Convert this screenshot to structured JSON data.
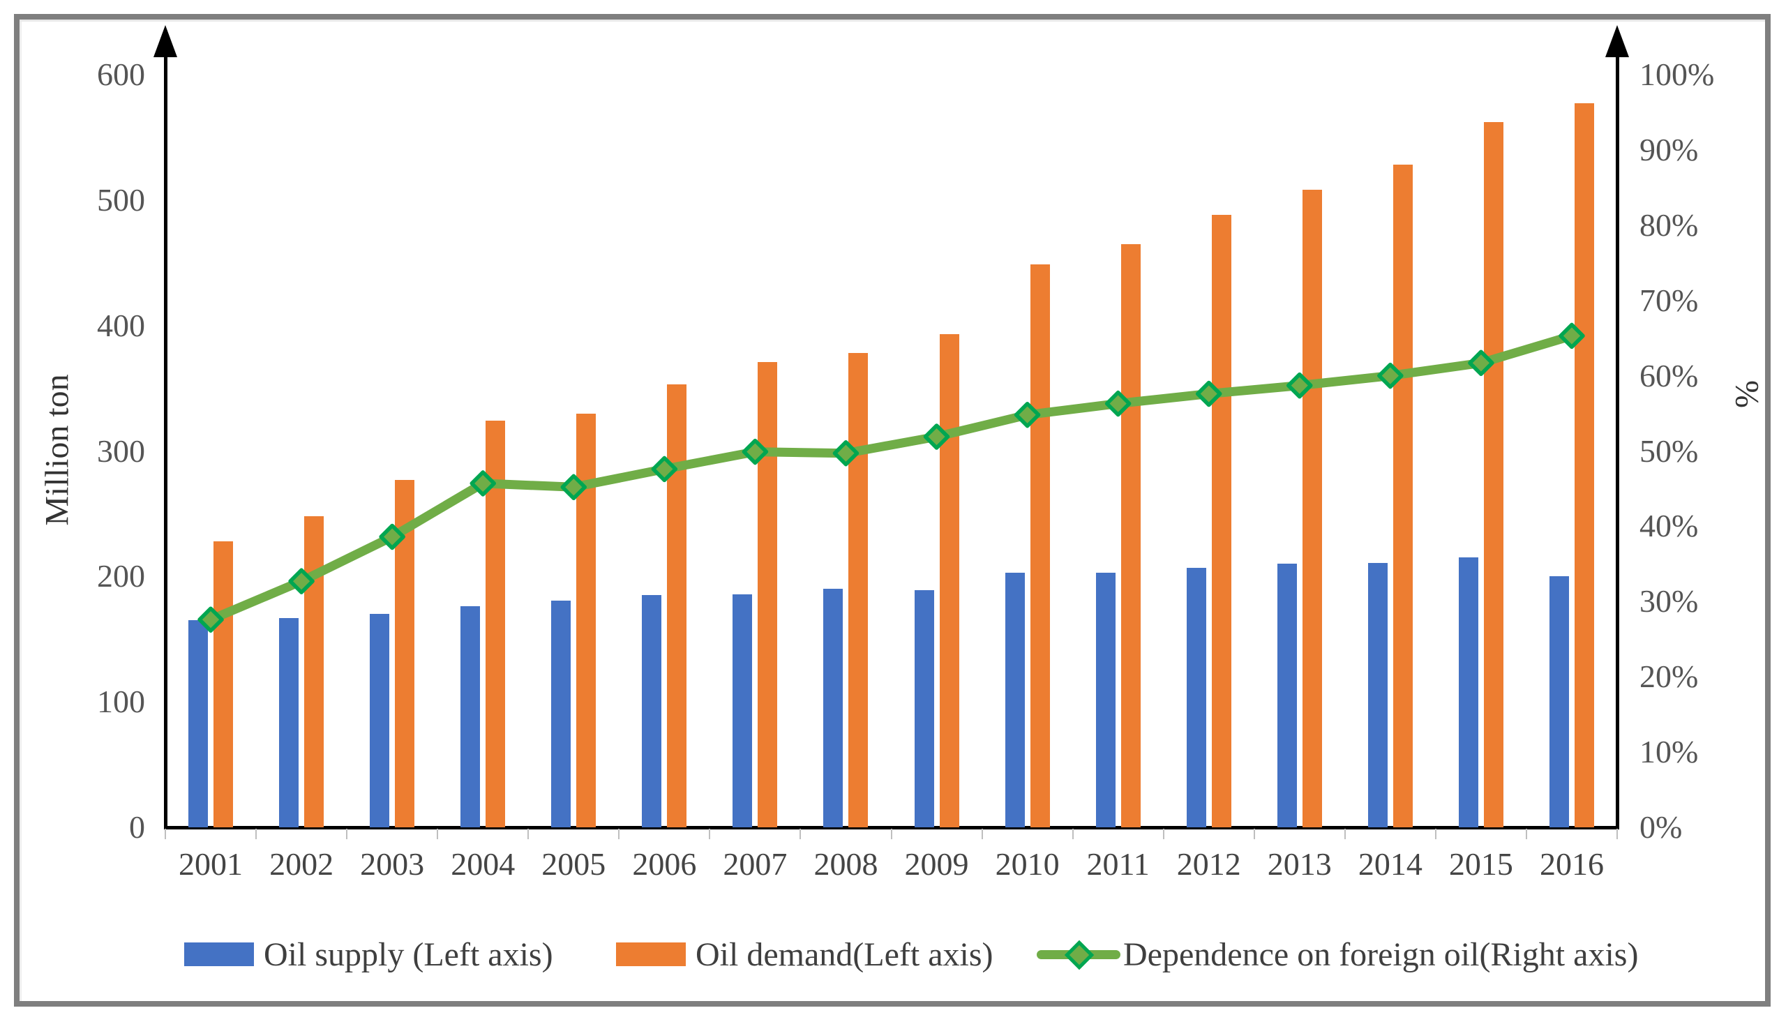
{
  "chart_data": {
    "type": "bar",
    "subtype": "bar-line-combo-dual-axis",
    "categories": [
      "2001",
      "2002",
      "2003",
      "2004",
      "2005",
      "2006",
      "2007",
      "2008",
      "2009",
      "2010",
      "2011",
      "2012",
      "2013",
      "2014",
      "2015",
      "2016"
    ],
    "series": [
      {
        "name": "Oil supply (Left axis)",
        "type": "bar",
        "axis": "left",
        "color": "#4472C4",
        "values": [
          165,
          167,
          170,
          176,
          181,
          185,
          186,
          190,
          189,
          203,
          203,
          207,
          210,
          211,
          215,
          200
        ]
      },
      {
        "name": "Oil demand(Left axis)",
        "type": "bar",
        "axis": "left",
        "color": "#ED7D31",
        "values": [
          228,
          248,
          277,
          324,
          330,
          353,
          371,
          378,
          393,
          449,
          465,
          488,
          508,
          528,
          562,
          577
        ]
      },
      {
        "name": "Dependence on foreign oil(Right axis)",
        "type": "line",
        "axis": "right",
        "color": "#70AD47",
        "marker": "diamond",
        "marker_outline_color": "#00A651",
        "values_percent": [
          27.6,
          32.7,
          38.6,
          45.7,
          45.2,
          47.6,
          49.9,
          49.7,
          51.9,
          54.8,
          56.3,
          57.6,
          58.7,
          60.0,
          61.7,
          65.3
        ]
      }
    ],
    "left_axis": {
      "label": "Million ton",
      "min": 0,
      "max": 600,
      "tick_step": 100,
      "ticks": [
        "0",
        "100",
        "200",
        "300",
        "400",
        "500",
        "600"
      ]
    },
    "right_axis": {
      "label": "%",
      "min": 0,
      "max": 100,
      "tick_step": 10,
      "ticks": [
        "0%",
        "10%",
        "20%",
        "30%",
        "40%",
        "50%",
        "60%",
        "70%",
        "80%",
        "90%",
        "100%"
      ]
    },
    "grid": false,
    "legend_position": "bottom",
    "axis_arrowheads": true,
    "frame_color": "#7f7f7f"
  }
}
